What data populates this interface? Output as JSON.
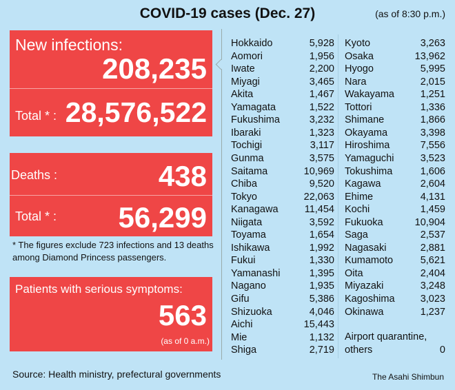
{
  "header": {
    "title": "COVID-19 cases (Dec. 27)",
    "as_of": "(as of 8:30 p.m.)"
  },
  "infections": {
    "new_label": "New infections:",
    "new_value": "208,235",
    "total_label": "Total * :",
    "total_value": "28,576,522"
  },
  "deaths": {
    "label": "Deaths :",
    "value": "438",
    "total_label": "Total * :",
    "total_value": "56,299"
  },
  "footnote": "* The figures exclude 723 infections and 13 deaths among Diamond Princess passengers.",
  "serious": {
    "label": "Patients with serious symptoms:",
    "value": "563",
    "as_of": "(as of 0 a.m.)"
  },
  "prefectures_left": [
    {
      "name": "Hokkaido",
      "value": "5,928"
    },
    {
      "name": "Aomori",
      "value": "1,956"
    },
    {
      "name": "Iwate",
      "value": "2,200"
    },
    {
      "name": "Miyagi",
      "value": "3,465"
    },
    {
      "name": "Akita",
      "value": "1,467"
    },
    {
      "name": "Yamagata",
      "value": "1,522"
    },
    {
      "name": "Fukushima",
      "value": "3,232"
    },
    {
      "name": "Ibaraki",
      "value": "1,323"
    },
    {
      "name": "Tochigi",
      "value": "3,117"
    },
    {
      "name": "Gunma",
      "value": "3,575"
    },
    {
      "name": "Saitama",
      "value": "10,969"
    },
    {
      "name": "Chiba",
      "value": "9,520"
    },
    {
      "name": "Tokyo",
      "value": "22,063"
    },
    {
      "name": "Kanagawa",
      "value": "11,454"
    },
    {
      "name": "Niigata",
      "value": "3,592"
    },
    {
      "name": "Toyama",
      "value": "1,654"
    },
    {
      "name": "Ishikawa",
      "value": "1,992"
    },
    {
      "name": "Fukui",
      "value": "1,330"
    },
    {
      "name": "Yamanashi",
      "value": "1,395"
    },
    {
      "name": "Nagano",
      "value": "1,935"
    },
    {
      "name": "Gifu",
      "value": "5,386"
    },
    {
      "name": "Shizuoka",
      "value": "4,046"
    },
    {
      "name": "Aichi",
      "value": "15,443"
    },
    {
      "name": "Mie",
      "value": "1,132"
    },
    {
      "name": "Shiga",
      "value": "2,719"
    }
  ],
  "prefectures_right": [
    {
      "name": "Kyoto",
      "value": "3,263"
    },
    {
      "name": "Osaka",
      "value": "13,962"
    },
    {
      "name": "Hyogo",
      "value": "5,995"
    },
    {
      "name": "Nara",
      "value": "2,015"
    },
    {
      "name": "Wakayama",
      "value": "1,251"
    },
    {
      "name": "Tottori",
      "value": "1,336"
    },
    {
      "name": "Shimane",
      "value": "1,866"
    },
    {
      "name": "Okayama",
      "value": "3,398"
    },
    {
      "name": "Hiroshima",
      "value": "7,556"
    },
    {
      "name": "Yamaguchi",
      "value": "3,523"
    },
    {
      "name": "Tokushima",
      "value": "1,606"
    },
    {
      "name": "Kagawa",
      "value": "2,604"
    },
    {
      "name": "Ehime",
      "value": "4,131"
    },
    {
      "name": "Kochi",
      "value": "1,459"
    },
    {
      "name": "Fukuoka",
      "value": "10,904"
    },
    {
      "name": "Saga",
      "value": "2,537"
    },
    {
      "name": "Nagasaki",
      "value": "2,881"
    },
    {
      "name": "Kumamoto",
      "value": "5,621"
    },
    {
      "name": "Oita",
      "value": "2,404"
    },
    {
      "name": "Miyazaki",
      "value": "3,248"
    },
    {
      "name": "Kagoshima",
      "value": "3,023"
    },
    {
      "name": "Okinawa",
      "value": "1,237"
    }
  ],
  "airport": {
    "line1": "Airport quarantine,",
    "line2": "others",
    "value": "0"
  },
  "source": "Source: Health ministry, prefectural governments",
  "credit": "The Asahi Shimbun",
  "colors": {
    "background": "#bfe3f6",
    "panel": "#ef4646"
  }
}
